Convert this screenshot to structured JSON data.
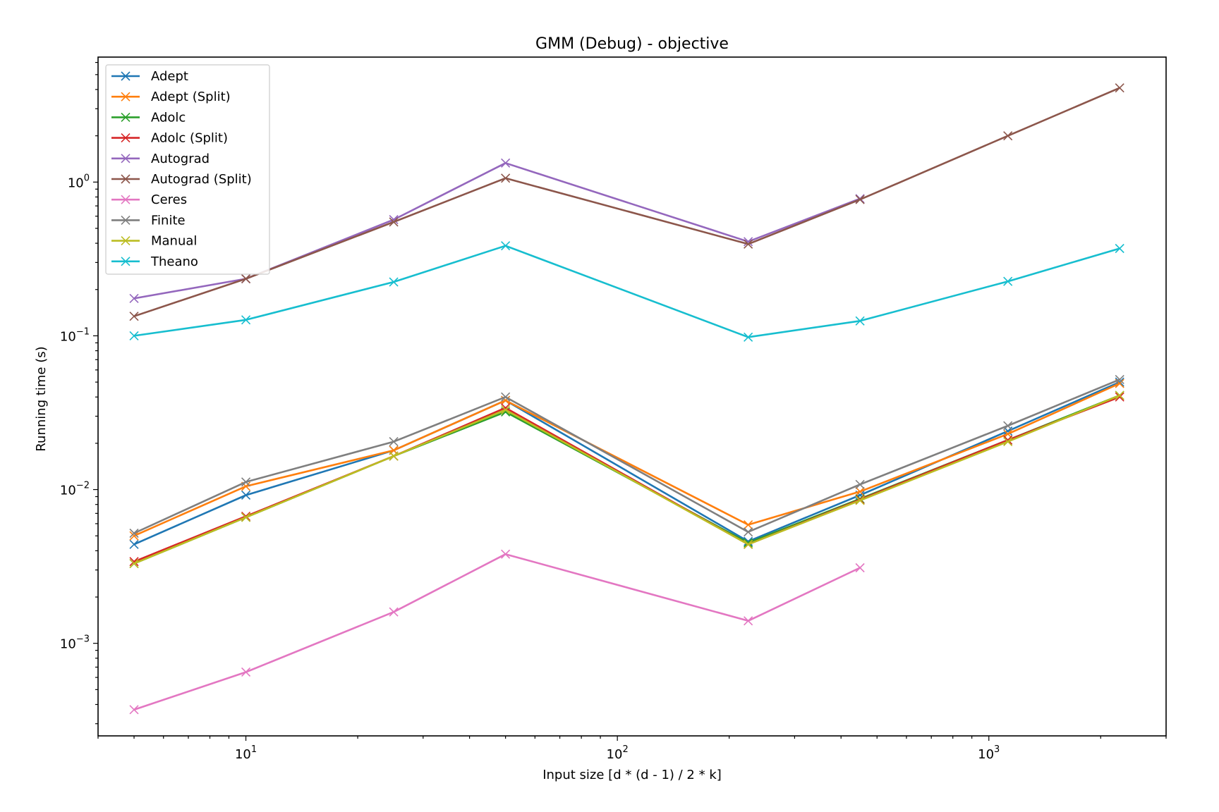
{
  "chart_data": {
    "type": "line",
    "title": "GMM (Debug) - objective",
    "xlabel": "Input size [d * (d - 1) / 2 * k]",
    "ylabel": "Running time (s)",
    "xscale": "log",
    "yscale": "log",
    "xlim": [
      4,
      3000
    ],
    "ylim": [
      0.00025,
      6.5
    ],
    "grid": false,
    "legend_position": "top-left",
    "marker": "x",
    "x_tick_labels": [
      {
        "value": 10,
        "base": "10",
        "exp": "1"
      },
      {
        "value": 100,
        "base": "10",
        "exp": "2"
      },
      {
        "value": 1000,
        "base": "10",
        "exp": "3"
      }
    ],
    "y_tick_labels": [
      {
        "value": 0.001,
        "base": "10",
        "exp": "−3"
      },
      {
        "value": 0.01,
        "base": "10",
        "exp": "−2"
      },
      {
        "value": 0.1,
        "base": "10",
        "exp": "−1"
      },
      {
        "value": 1,
        "base": "10",
        "exp": "0"
      }
    ],
    "series": [
      {
        "name": "Adept",
        "color": "#1f77b4",
        "x": [
          5,
          10,
          25,
          50,
          225,
          450,
          1125,
          2250
        ],
        "y": [
          0.0044,
          0.0092,
          0.018,
          0.038,
          0.0046,
          0.0092,
          0.024,
          0.05
        ]
      },
      {
        "name": "Adept (Split)",
        "color": "#ff7f0e",
        "x": [
          5,
          10,
          25,
          50,
          225,
          450,
          1125,
          2250
        ],
        "y": [
          0.005,
          0.0105,
          0.018,
          0.038,
          0.0059,
          0.0097,
          0.023,
          0.049
        ]
      },
      {
        "name": "Adolc",
        "color": "#2ca02c",
        "x": [
          5,
          10,
          25,
          50,
          225,
          450,
          1125,
          2250
        ],
        "y": [
          0.0033,
          0.0066,
          0.0165,
          0.032,
          0.0045,
          0.0087,
          0.021,
          0.041
        ]
      },
      {
        "name": "Adolc (Split)",
        "color": "#d62728",
        "x": [
          5,
          10,
          25,
          50,
          225,
          450,
          1125,
          2250
        ],
        "y": [
          0.0034,
          0.0067,
          0.0165,
          0.034,
          0.0044,
          0.0086,
          0.021,
          0.04
        ]
      },
      {
        "name": "Autograd",
        "color": "#9467bd",
        "x": [
          5,
          10,
          25,
          50,
          225,
          450
        ],
        "y": [
          0.175,
          0.235,
          0.57,
          1.33,
          0.41,
          0.78
        ]
      },
      {
        "name": "Autograd (Split)",
        "color": "#8c564b",
        "x": [
          5,
          10,
          25,
          50,
          225,
          450,
          1125,
          2250
        ],
        "y": [
          0.134,
          0.235,
          0.55,
          1.06,
          0.395,
          0.77,
          2.0,
          4.1
        ]
      },
      {
        "name": "Ceres",
        "color": "#e377c2",
        "x": [
          5,
          10,
          25,
          50,
          225,
          450
        ],
        "y": [
          0.00037,
          0.00065,
          0.0016,
          0.0038,
          0.0014,
          0.0031
        ]
      },
      {
        "name": "Finite",
        "color": "#7f7f7f",
        "x": [
          5,
          10,
          25,
          50,
          225,
          450,
          1125,
          2250
        ],
        "y": [
          0.0052,
          0.0112,
          0.0205,
          0.04,
          0.0053,
          0.0108,
          0.026,
          0.052
        ]
      },
      {
        "name": "Manual",
        "color": "#bcbd22",
        "x": [
          5,
          10,
          25,
          50,
          225,
          450,
          1125,
          2250
        ],
        "y": [
          0.0033,
          0.0066,
          0.0165,
          0.033,
          0.0044,
          0.0085,
          0.0205,
          0.041
        ]
      },
      {
        "name": "Theano",
        "color": "#17becf",
        "x": [
          5,
          10,
          25,
          50,
          225,
          450,
          1125,
          2250
        ],
        "y": [
          0.1,
          0.127,
          0.224,
          0.385,
          0.098,
          0.125,
          0.226,
          0.37
        ]
      }
    ]
  }
}
